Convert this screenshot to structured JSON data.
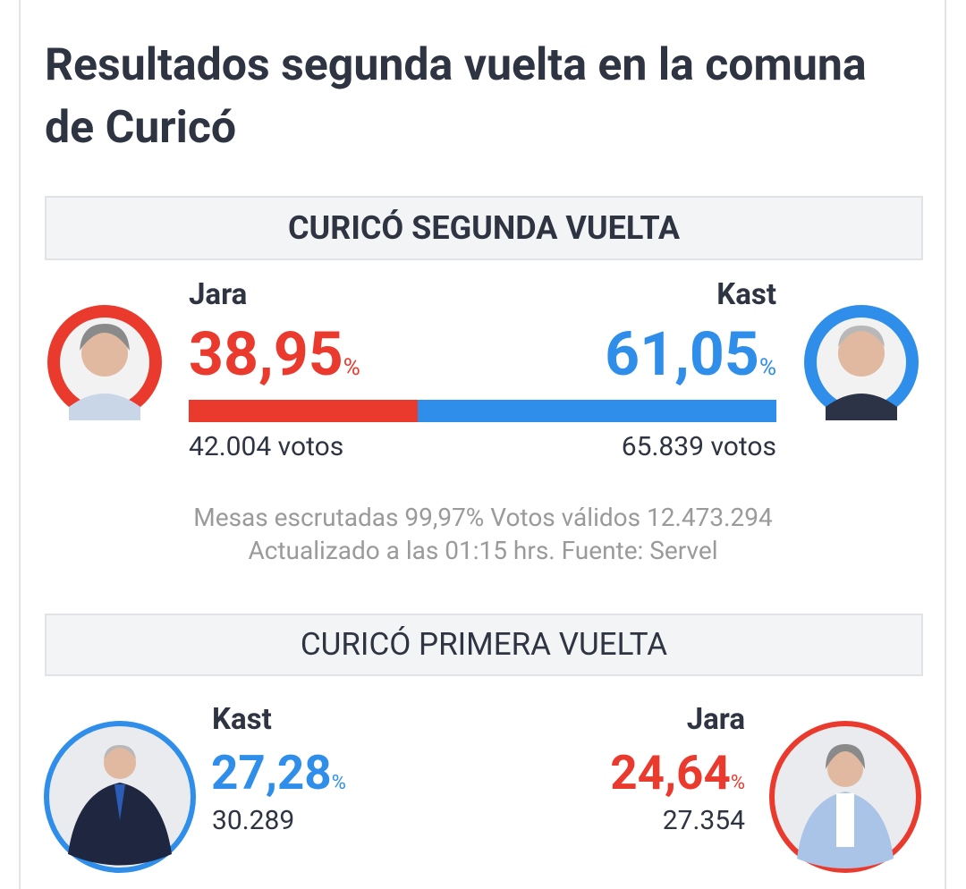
{
  "header": {
    "title": "Resultados segunda vuelta en la comuna de Curicó"
  },
  "segunda": {
    "heading": "CURICÓ SEGUNDA VUELTA",
    "candidates": [
      {
        "name": "Jara",
        "percent": {
          "value": 38.95,
          "label": "38,95"
        },
        "percent_sign": "%",
        "votes": "42.004 votos",
        "color": "#ea3a2e"
      },
      {
        "name": "Kast",
        "percent": {
          "value": 61.05,
          "label": "61,05"
        },
        "percent_sign": "%",
        "votes": "65.839 votos",
        "color": "#2f8ee9"
      }
    ],
    "notes": [
      "Mesas escrutadas 99,97% Votos válidos 12.473.294",
      "Actualizado a las 01:15 hrs. Fuente: Servel"
    ]
  },
  "primera": {
    "heading": "CURICÓ PRIMERA VUELTA",
    "candidates": [
      {
        "name": "Kast",
        "percent": {
          "value": 27.28,
          "label": "27,28"
        },
        "percent_sign": "%",
        "votes": "30.289",
        "color": "#2f8ee9"
      },
      {
        "name": "Jara",
        "percent": {
          "value": 24.64,
          "label": "24,64"
        },
        "percent_sign": "%",
        "votes": "27.354",
        "color": "#ea3a2e"
      }
    ]
  }
}
